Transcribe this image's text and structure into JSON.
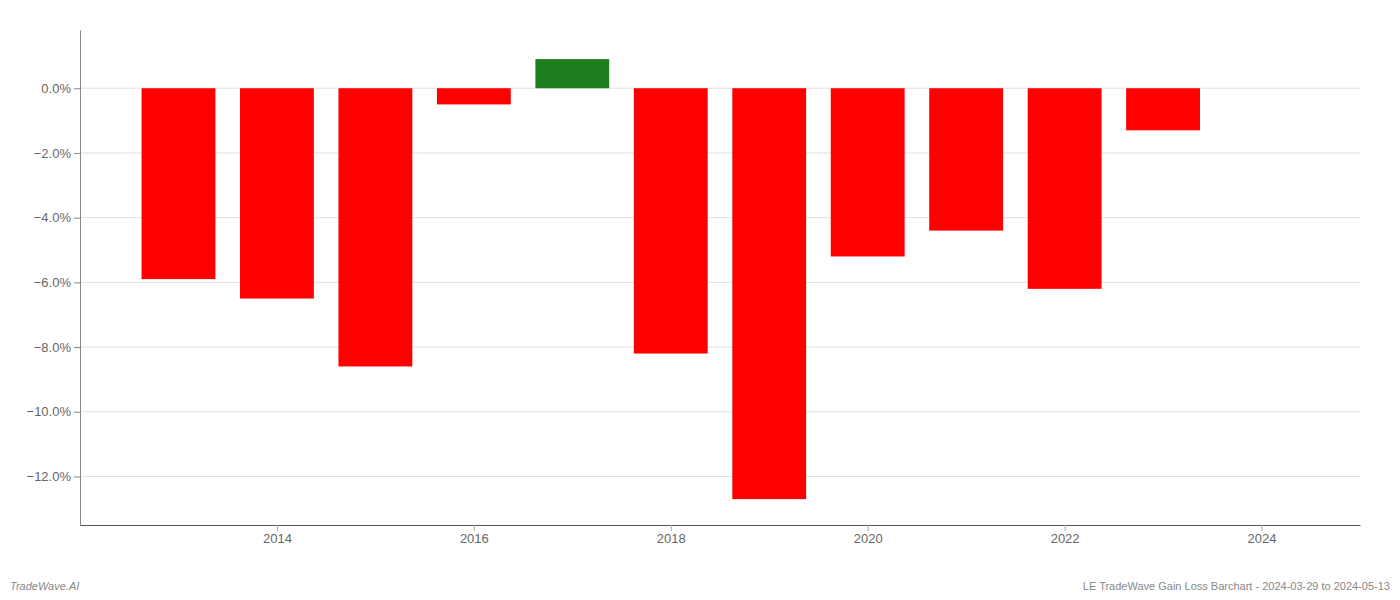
{
  "chart_data": {
    "type": "bar",
    "x": [
      2013,
      2014,
      2015,
      2016,
      2017,
      2018,
      2019,
      2020,
      2021,
      2022,
      2023
    ],
    "values": [
      -0.059,
      -0.065,
      -0.086,
      -0.005,
      0.009,
      -0.082,
      -0.127,
      -0.052,
      -0.044,
      -0.062,
      -0.013
    ],
    "colors": [
      "#ff0000",
      "#ff0000",
      "#ff0000",
      "#ff0000",
      "#1e7e1e",
      "#ff0000",
      "#ff0000",
      "#ff0000",
      "#ff0000",
      "#ff0000",
      "#ff0000"
    ],
    "xlim": [
      2012.0,
      2025.0
    ],
    "xticks": [
      2014,
      2016,
      2018,
      2020,
      2022,
      2024
    ],
    "ylim": [
      -0.135,
      0.018
    ],
    "yticks": [
      {
        "value": 0.0,
        "label": "0.0%"
      },
      {
        "value": -0.02,
        "label": "−2.0%"
      },
      {
        "value": -0.04,
        "label": "−4.0%"
      },
      {
        "value": -0.06,
        "label": "−6.0%"
      },
      {
        "value": -0.08,
        "label": "−8.0%"
      },
      {
        "value": -0.1,
        "label": "−10.0%"
      },
      {
        "value": -0.12,
        "label": "−12.0%"
      }
    ],
    "grid": true,
    "annotations": [
      "TradeWave.AI",
      "LE TradeWave Gain Loss Barchart - 2024-03-29 to 2024-05-13"
    ]
  }
}
